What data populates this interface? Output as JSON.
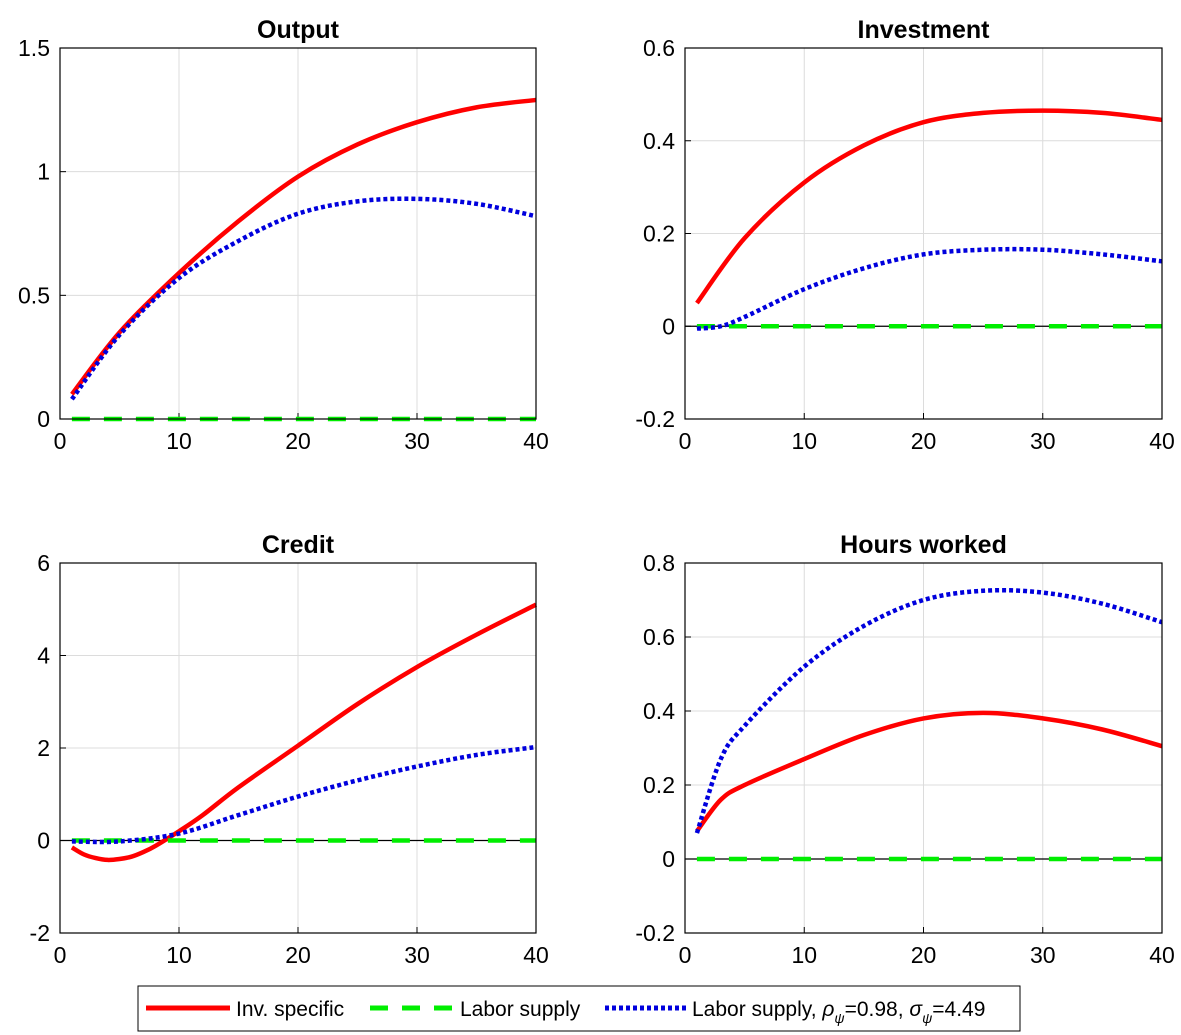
{
  "legend": {
    "entries": [
      {
        "label": "Inv. specific"
      },
      {
        "label": "Labor supply"
      },
      {
        "label_prefix": "Labor supply, ",
        "rho_symbol": "ρ",
        "rho_sub": "ψ",
        "rho_value": "=0.98, ",
        "sigma_symbol": "σ",
        "sigma_sub": "ψ",
        "sigma_value": "=4.49"
      }
    ]
  },
  "colors": {
    "inv_specific": "#ff0000",
    "labor_supply": "#00ee00",
    "labor_supply_param": "#0000dd",
    "grid": "#dcdcdc",
    "zero_line": "#000000"
  },
  "chart_data": [
    {
      "type": "line",
      "title": "Output",
      "xlim": [
        0,
        40
      ],
      "ylim": [
        0,
        1.5
      ],
      "xticks": [
        "0",
        "10",
        "20",
        "30",
        "40"
      ],
      "yticks": [
        "0",
        "0.5",
        "1",
        "1.5"
      ],
      "grid": true,
      "series": [
        {
          "name": "Inv. specific",
          "style": "solid",
          "x": [
            1,
            5,
            10,
            15,
            20,
            25,
            30,
            35,
            40
          ],
          "values": [
            0.1,
            0.35,
            0.59,
            0.8,
            0.98,
            1.11,
            1.2,
            1.26,
            1.29
          ]
        },
        {
          "name": "Labor supply",
          "style": "dashed",
          "x": [
            1,
            40
          ],
          "values": [
            0,
            0
          ]
        },
        {
          "name": "Labor supply, ρψ=0.98, σψ=4.49",
          "style": "dotted",
          "x": [
            1,
            5,
            10,
            15,
            20,
            25,
            30,
            35,
            40
          ],
          "values": [
            0.08,
            0.34,
            0.57,
            0.72,
            0.83,
            0.88,
            0.89,
            0.87,
            0.82
          ]
        }
      ]
    },
    {
      "type": "line",
      "title": "Investment",
      "xlim": [
        0,
        40
      ],
      "ylim": [
        -0.2,
        0.6
      ],
      "xticks": [
        "0",
        "10",
        "20",
        "30",
        "40"
      ],
      "yticks": [
        "-0.2",
        "0",
        "0.2",
        "0.4",
        "0.6"
      ],
      "grid": true,
      "series": [
        {
          "name": "Inv. specific",
          "style": "solid",
          "x": [
            1,
            5,
            10,
            15,
            20,
            25,
            30,
            35,
            40
          ],
          "values": [
            0.05,
            0.19,
            0.31,
            0.39,
            0.44,
            0.46,
            0.465,
            0.46,
            0.445
          ]
        },
        {
          "name": "Labor supply",
          "style": "dashed",
          "x": [
            1,
            40
          ],
          "values": [
            0,
            0
          ]
        },
        {
          "name": "Labor supply, ρψ=0.98, σψ=4.49",
          "style": "dotted",
          "x": [
            1,
            3,
            5,
            10,
            15,
            20,
            25,
            30,
            35,
            40
          ],
          "values": [
            -0.005,
            0.0,
            0.02,
            0.08,
            0.125,
            0.155,
            0.165,
            0.165,
            0.155,
            0.14
          ]
        }
      ]
    },
    {
      "type": "line",
      "title": "Credit",
      "xlim": [
        0,
        40
      ],
      "ylim": [
        -2,
        6
      ],
      "xticks": [
        "0",
        "10",
        "20",
        "30",
        "40"
      ],
      "yticks": [
        "-2",
        "0",
        "2",
        "4",
        "6"
      ],
      "grid": true,
      "series": [
        {
          "name": "Inv. specific",
          "style": "solid",
          "x": [
            1,
            2,
            3,
            4,
            5,
            6,
            7,
            8,
            10,
            12,
            15,
            20,
            25,
            30,
            35,
            40
          ],
          "values": [
            -0.15,
            -0.3,
            -0.38,
            -0.42,
            -0.4,
            -0.35,
            -0.25,
            -0.12,
            0.2,
            0.55,
            1.15,
            2.05,
            2.95,
            3.75,
            4.45,
            5.1
          ]
        },
        {
          "name": "Labor supply",
          "style": "dashed",
          "x": [
            1,
            40
          ],
          "values": [
            0,
            0
          ]
        },
        {
          "name": "Labor supply, ρψ=0.98, σψ=4.49",
          "style": "dotted",
          "x": [
            1,
            5,
            10,
            15,
            20,
            25,
            30,
            35,
            40
          ],
          "values": [
            -0.02,
            -0.02,
            0.15,
            0.55,
            0.95,
            1.3,
            1.6,
            1.85,
            2.02
          ]
        }
      ]
    },
    {
      "type": "line",
      "title": "Hours worked",
      "xlim": [
        0,
        40
      ],
      "ylim": [
        -0.2,
        0.8
      ],
      "xticks": [
        "0",
        "10",
        "20",
        "30",
        "40"
      ],
      "yticks": [
        "-0.2",
        "0",
        "0.2",
        "0.4",
        "0.6",
        "0.8"
      ],
      "grid": true,
      "series": [
        {
          "name": "Inv. specific",
          "style": "solid",
          "x": [
            1,
            3,
            5,
            10,
            15,
            20,
            25,
            30,
            35,
            40
          ],
          "values": [
            0.075,
            0.16,
            0.2,
            0.27,
            0.335,
            0.38,
            0.395,
            0.38,
            0.35,
            0.305
          ]
        },
        {
          "name": "Labor supply",
          "style": "dashed",
          "x": [
            1,
            40
          ],
          "values": [
            0,
            0
          ]
        },
        {
          "name": "Labor supply, ρψ=0.98, σψ=4.49",
          "style": "dotted",
          "x": [
            1,
            3,
            5,
            10,
            15,
            20,
            25,
            30,
            35,
            40
          ],
          "values": [
            0.07,
            0.27,
            0.36,
            0.52,
            0.63,
            0.7,
            0.725,
            0.72,
            0.69,
            0.64
          ]
        }
      ]
    }
  ]
}
